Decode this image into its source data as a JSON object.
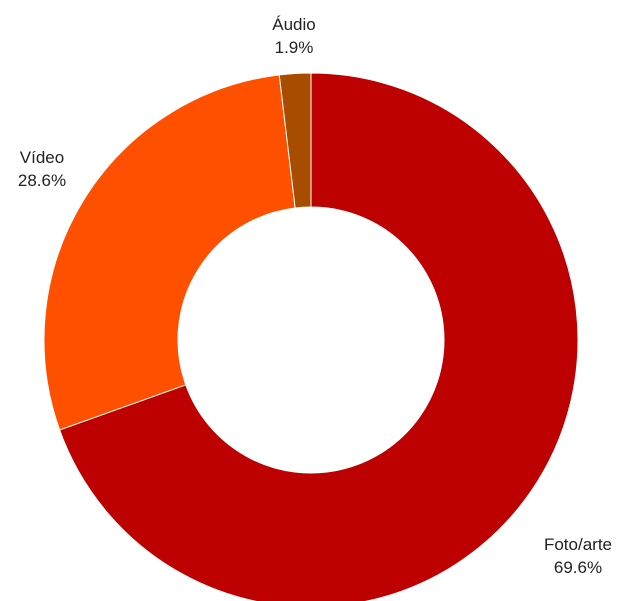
{
  "chart_data": {
    "type": "pie",
    "donut": true,
    "slices": [
      {
        "label": "Foto/arte",
        "value": 69.6,
        "value_label": "69.6%",
        "color": "#bd0000"
      },
      {
        "label": "Vídeo",
        "value": 28.6,
        "value_label": "28.6%",
        "color": "#ff5000"
      },
      {
        "label": "Áudio",
        "value": 1.9,
        "value_label": "1.9%",
        "color": "#a84c00"
      }
    ]
  }
}
